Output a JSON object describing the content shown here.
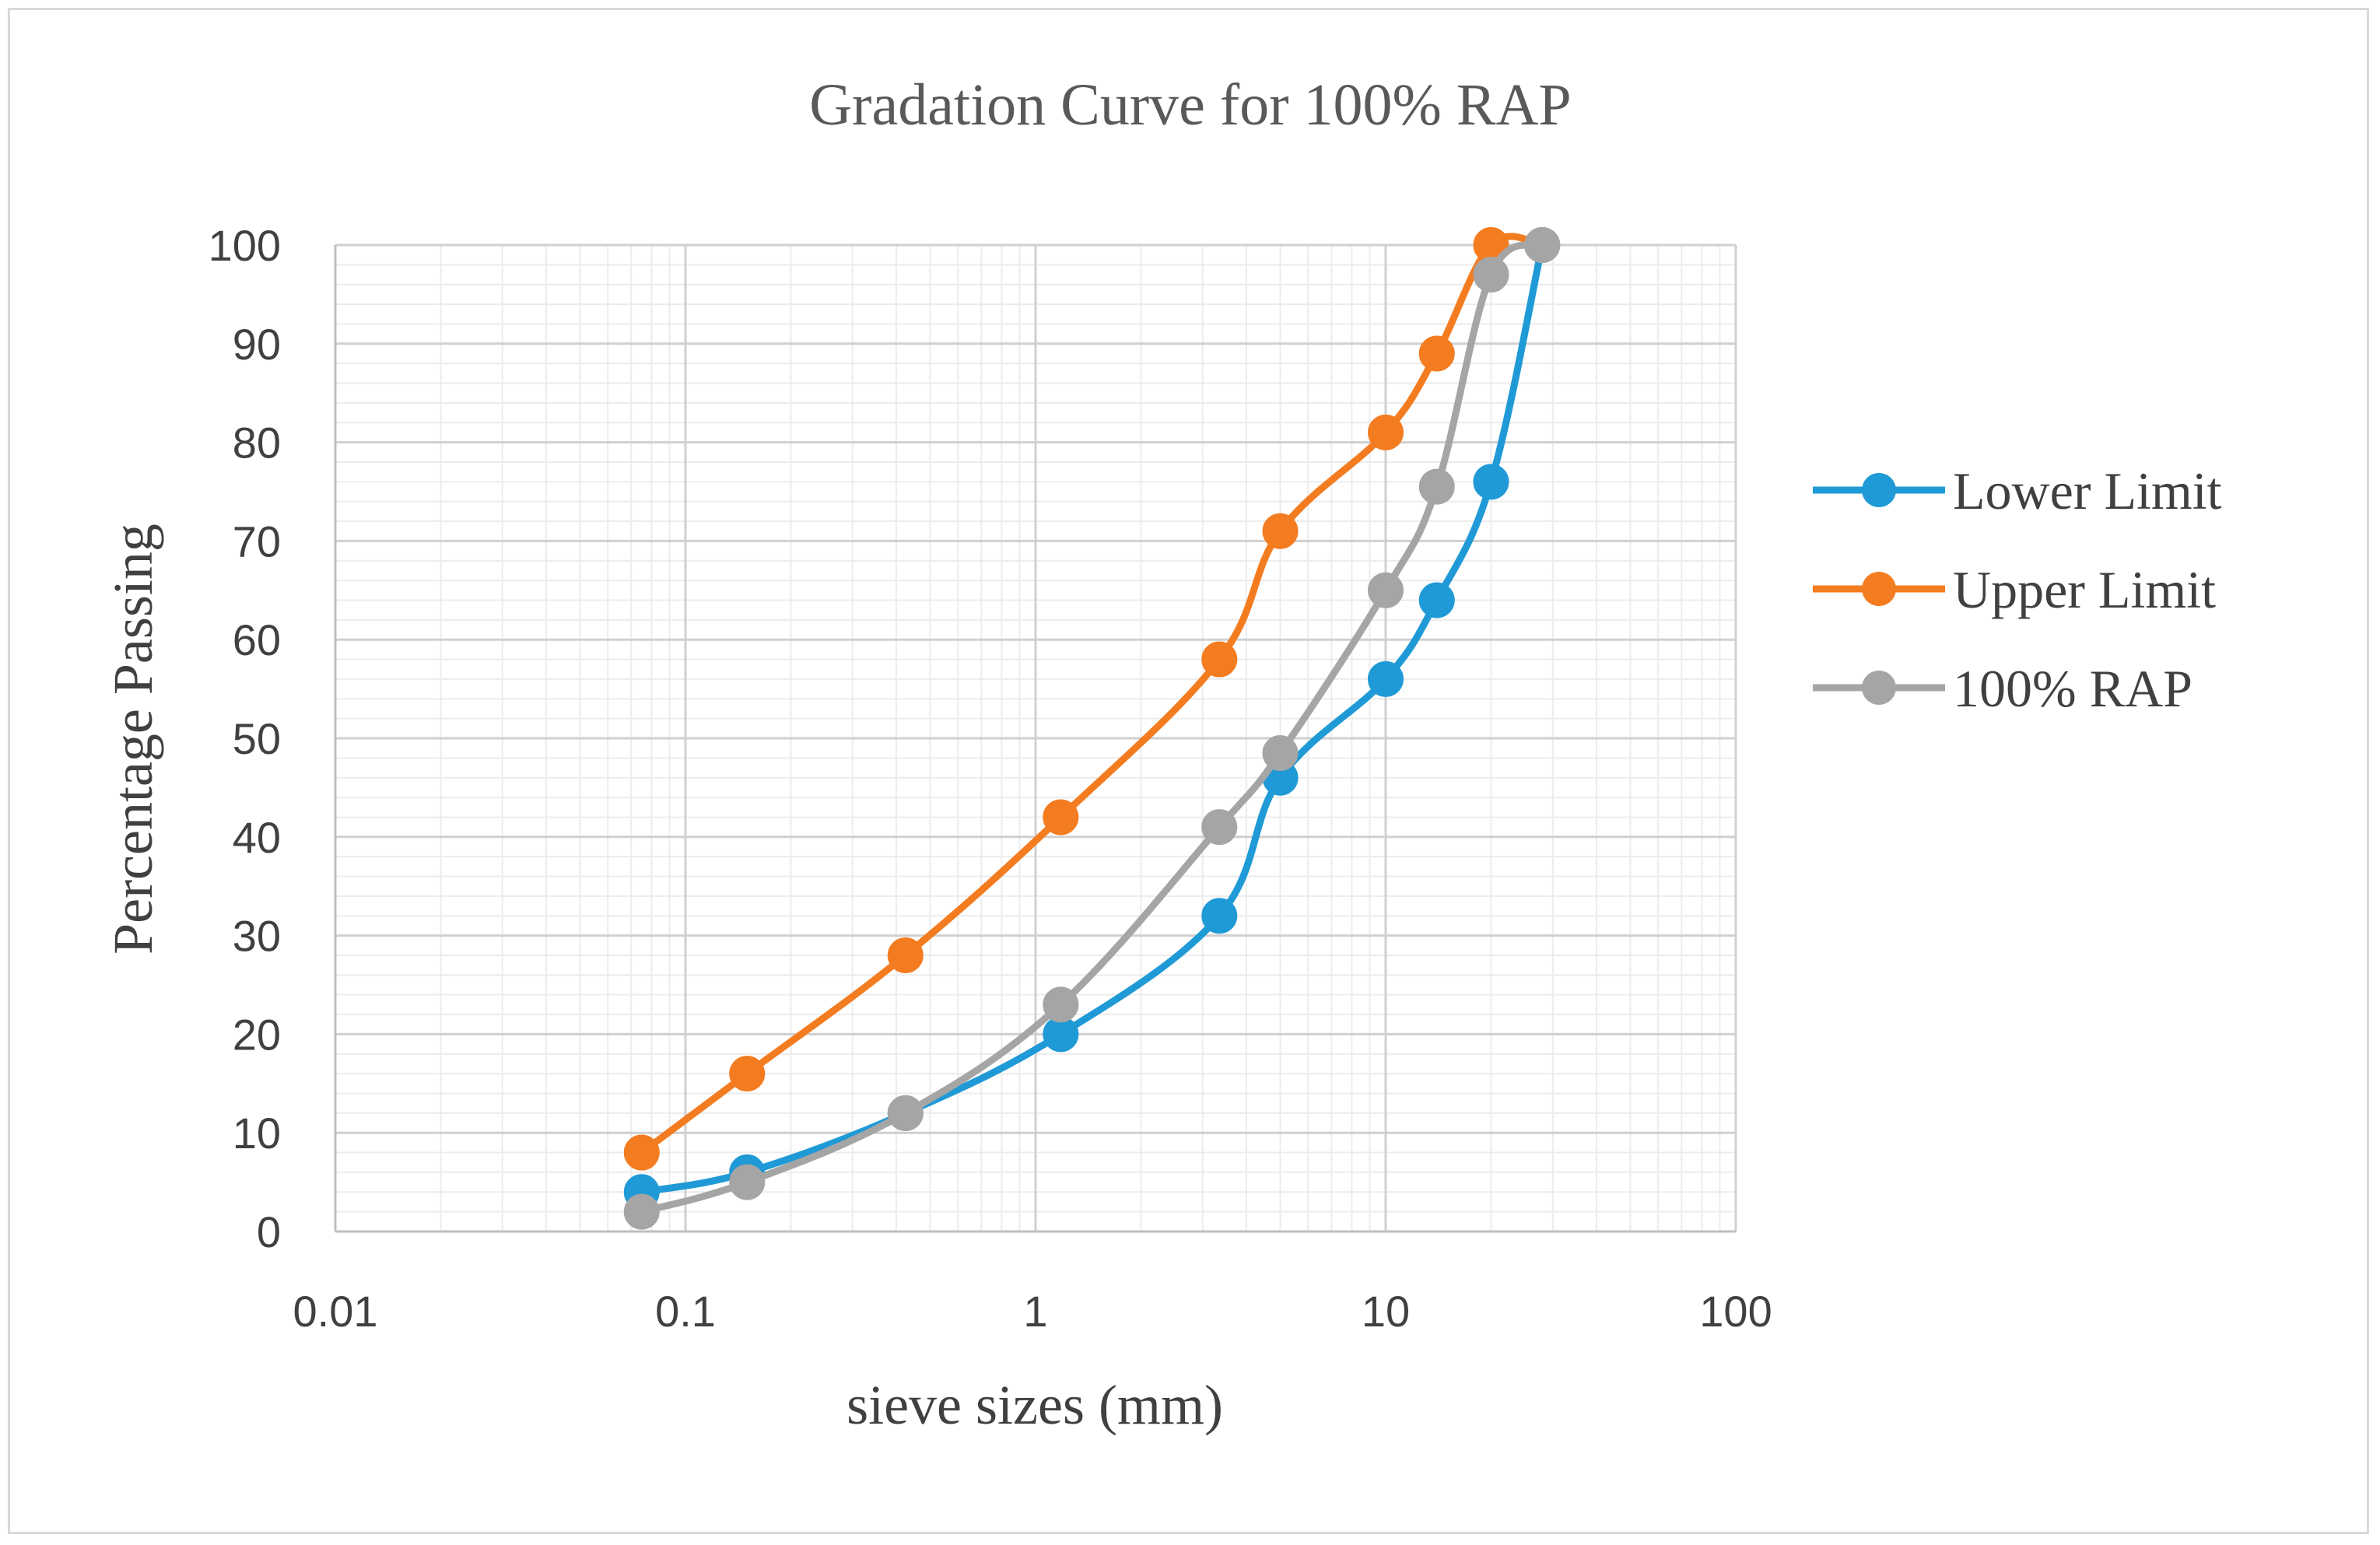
{
  "chart_data": {
    "type": "scatter",
    "title": "Gradation Curve for 100% RAP",
    "xlabel": "sieve sizes (mm)",
    "ylabel": "Percentage Passing",
    "xscale": "log",
    "xlim": [
      0.01,
      100
    ],
    "ylim": [
      0,
      100
    ],
    "x_ticks": [
      "0.01",
      "0.1",
      "1",
      "10",
      "100"
    ],
    "y_ticks": [
      "0",
      "10",
      "20",
      "30",
      "40",
      "50",
      "60",
      "70",
      "80",
      "90",
      "100"
    ],
    "grid": true,
    "legend_position": "right",
    "series": [
      {
        "name": "Lower Limit",
        "color": "#1f9ad6",
        "x": [
          0.075,
          0.15,
          0.425,
          1.18,
          3.35,
          5.0,
          10.0,
          14.0,
          20.0,
          28.0
        ],
        "y": [
          4,
          6,
          12,
          20,
          32,
          46,
          56,
          64,
          76,
          100
        ]
      },
      {
        "name": "Upper Limit",
        "color": "#f47c20",
        "x": [
          0.075,
          0.15,
          0.425,
          1.18,
          3.35,
          5.0,
          10.0,
          14.0,
          20.0,
          28.0
        ],
        "y": [
          8,
          16,
          28,
          42,
          58,
          71,
          81,
          89,
          100,
          100
        ]
      },
      {
        "name": "100% RAP",
        "color": "#a5a5a5",
        "x": [
          0.075,
          0.15,
          0.425,
          1.18,
          3.35,
          5.0,
          10.0,
          14.0,
          20.0,
          28.0
        ],
        "y": [
          2,
          5,
          12,
          23,
          41,
          48.5,
          65,
          75.5,
          97,
          100
        ]
      }
    ]
  }
}
